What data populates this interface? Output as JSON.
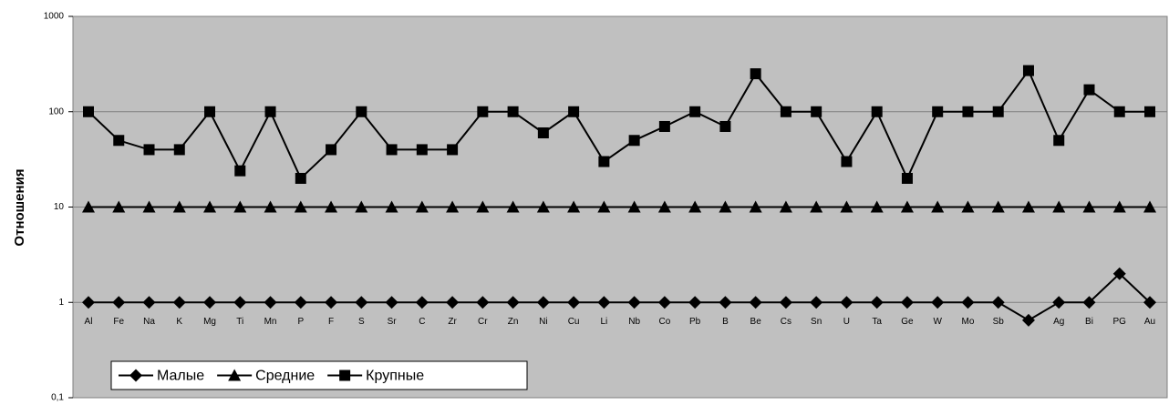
{
  "chart_data": {
    "type": "line",
    "y_label": "Отношения",
    "log_scale": true,
    "grid": true,
    "legend": "bottom-left",
    "background": "#c0c0c0",
    "categories": [
      "Al",
      "Fe",
      "Na",
      "K",
      "Mg",
      "Ti",
      "Mn",
      "P",
      "F",
      "S",
      "Sr",
      "C",
      "Zr",
      "Cr",
      "Zn",
      "Ni",
      "Cu",
      "Li",
      "Nb",
      "Co",
      "Pb",
      "B",
      "Be",
      "Cs",
      "Sn",
      "U",
      "Ta",
      "Ge",
      "W",
      "Mo",
      "Sb",
      null,
      "Ag",
      "Bi",
      "PG",
      "Au"
    ],
    "series": [
      {
        "name": "Малые",
        "color": "#000000",
        "marker": "diamond",
        "values": [
          1,
          1,
          1,
          1,
          1,
          1,
          1,
          1,
          1,
          1,
          1,
          1,
          1,
          1,
          1,
          1,
          1,
          1,
          1,
          1,
          1,
          1,
          1,
          1,
          1,
          1,
          1,
          1,
          1,
          1,
          1,
          0.65,
          1,
          1,
          2,
          1
        ]
      },
      {
        "name": "Средние",
        "color": "#000000",
        "marker": "triangle",
        "values": [
          10,
          10,
          10,
          10,
          10,
          10,
          10,
          10,
          10,
          10,
          10,
          10,
          10,
          10,
          10,
          10,
          10,
          10,
          10,
          10,
          10,
          10,
          10,
          10,
          10,
          10,
          10,
          10,
          10,
          10,
          10,
          10,
          10,
          10,
          10,
          10
        ]
      },
      {
        "name": "Крупные",
        "color": "#000000",
        "marker": "square",
        "values": [
          100,
          50,
          40,
          40,
          100,
          24,
          100,
          20,
          40,
          100,
          40,
          40,
          40,
          100,
          100,
          60,
          100,
          30,
          50,
          70,
          100,
          70,
          250,
          100,
          100,
          30,
          100,
          20,
          100,
          100,
          100,
          270,
          50,
          170,
          100,
          100
        ]
      }
    ],
    "ylim": [
      0.1,
      1000
    ],
    "yticks": [
      {
        "value": 0.1,
        "label": "0,1"
      },
      1,
      10,
      100,
      1000
    ]
  }
}
